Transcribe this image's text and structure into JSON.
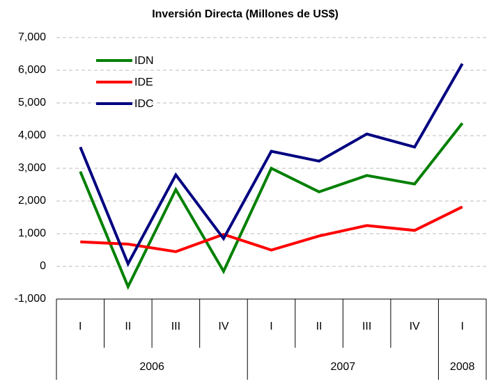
{
  "chart_data": {
    "type": "line",
    "title": "Inversión Directa (Millones de US$)",
    "categories": [
      "I",
      "II",
      "III",
      "IV",
      "I",
      "II",
      "III",
      "IV",
      "I"
    ],
    "x_groups": [
      "2006",
      "2007",
      "2008"
    ],
    "x_group_sizes": [
      4,
      4,
      1
    ],
    "series": [
      {
        "name": "IDN",
        "color": "#008000",
        "values": [
          2900,
          -620,
          2350,
          -150,
          3000,
          2280,
          2780,
          2520,
          4380
        ]
      },
      {
        "name": "IDE",
        "color": "#ff0000",
        "values": [
          750,
          680,
          450,
          980,
          500,
          930,
          1250,
          1100,
          1820
        ]
      },
      {
        "name": "IDC",
        "color": "#000080",
        "values": [
          3650,
          80,
          2800,
          850,
          3520,
          3220,
          4050,
          3650,
          6200
        ]
      }
    ],
    "ylim": [
      -1000,
      7000
    ],
    "yticks": [
      {
        "value": -1000,
        "label": "-1,000"
      },
      0,
      {
        "value": 1000,
        "label": "1,000"
      },
      {
        "value": 2000,
        "label": "2,000"
      },
      {
        "value": 3000,
        "label": "3,000"
      },
      {
        "value": 4000,
        "label": "4,000"
      },
      {
        "value": 5000,
        "label": "5,000"
      },
      {
        "value": 6000,
        "label": "6,000"
      },
      {
        "value": 7000,
        "label": "7,000"
      }
    ],
    "grid": true,
    "legend": "upper left"
  }
}
